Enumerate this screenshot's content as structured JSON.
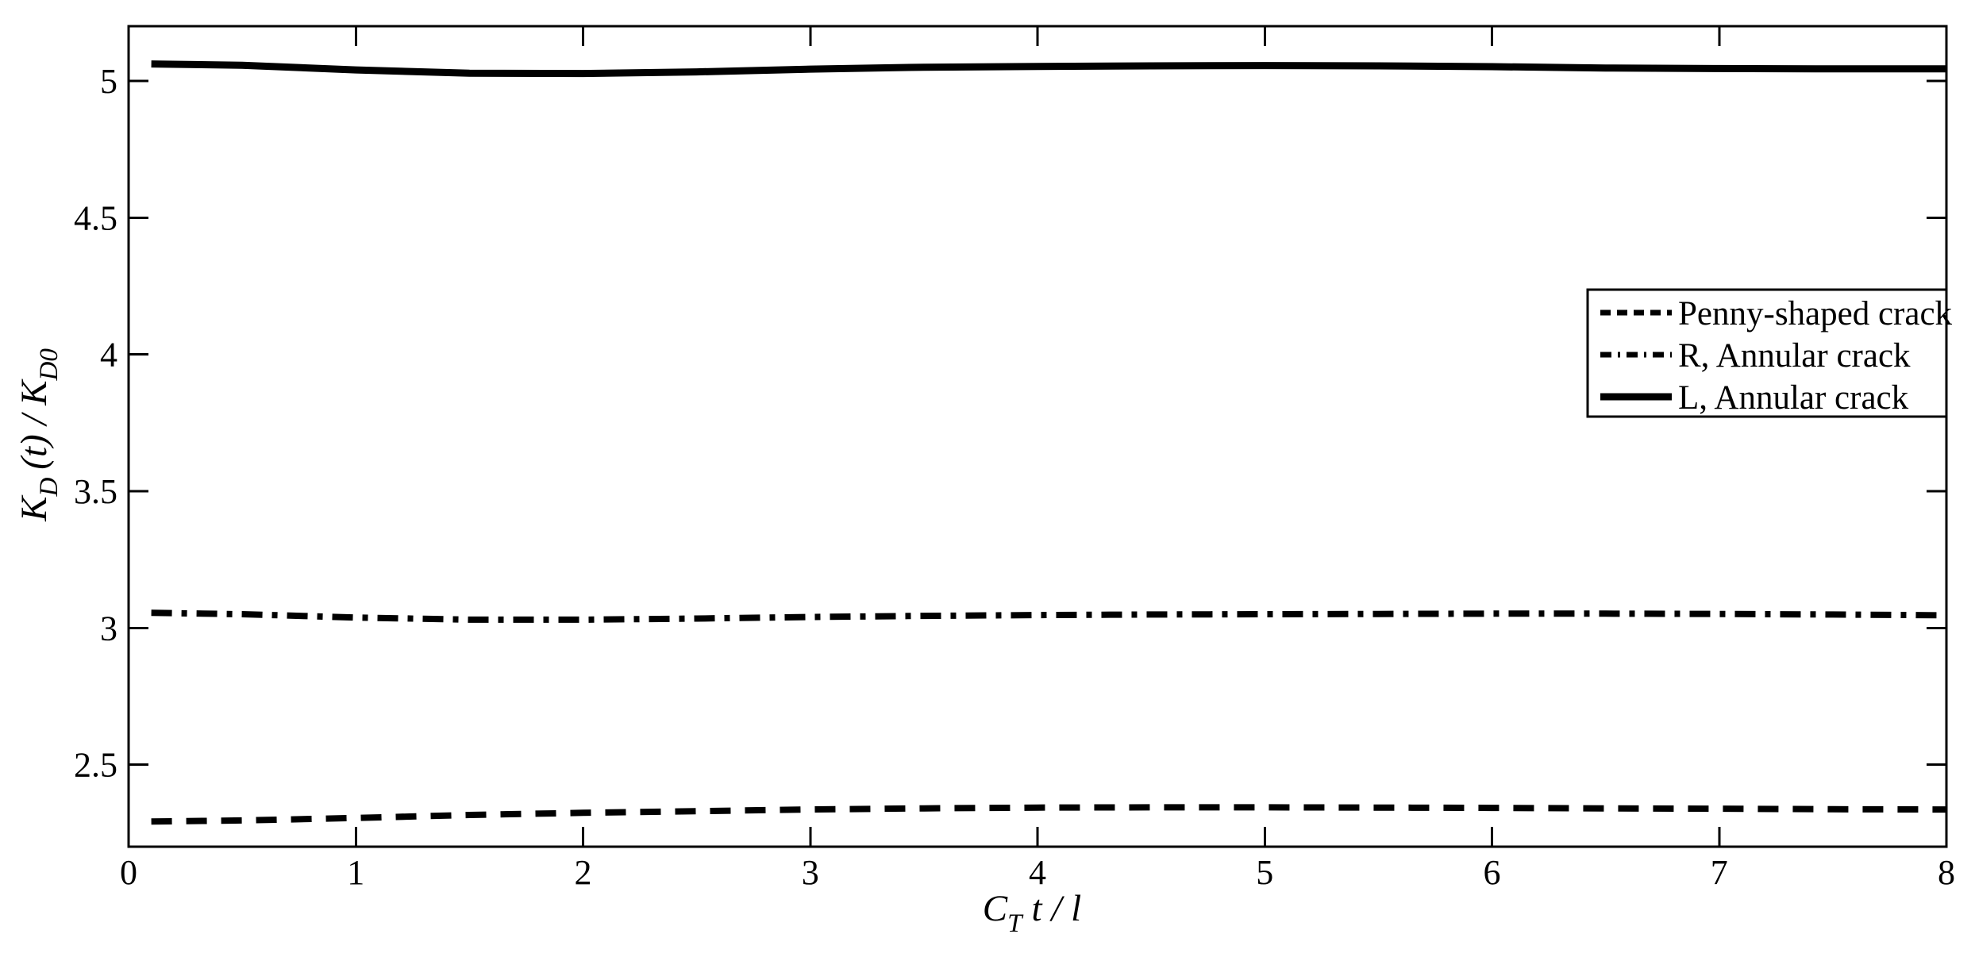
{
  "figure": {
    "background": "#ffffff",
    "axis_color": "#000000"
  },
  "chart_data": {
    "type": "line",
    "title": "",
    "xlabel": {
      "base": "C",
      "sub": "T",
      "rest": "t / l"
    },
    "ylabel": {
      "k1": "K",
      "sub1": "D",
      "mid": "(t) / ",
      "k2": "K",
      "sub2": "D0"
    },
    "xlim": [
      0,
      8
    ],
    "ylim": [
      2.2,
      5.2
    ],
    "x_ticks": [
      0,
      1,
      2,
      3,
      4,
      5,
      6,
      7,
      8
    ],
    "y_ticks": [
      2.5,
      3,
      3.5,
      4,
      4.5,
      5
    ],
    "grid": false,
    "legend": {
      "position": "upper right",
      "border": true
    },
    "x": [
      0.1,
      0.5,
      1,
      1.5,
      2,
      2.5,
      3,
      3.5,
      4,
      4.5,
      5,
      5.5,
      6,
      6.5,
      7,
      7.5,
      8
    ],
    "series": [
      {
        "name": "Penny-shaped crack",
        "line_style": "dashed",
        "color": "#000000",
        "values": [
          2.292,
          2.296,
          2.305,
          2.316,
          2.324,
          2.33,
          2.336,
          2.34,
          2.343,
          2.344,
          2.344,
          2.343,
          2.342,
          2.34,
          2.339,
          2.337,
          2.336
        ]
      },
      {
        "name": "R, Annular crack",
        "line_style": "dashdot",
        "color": "#000000",
        "values": [
          3.055,
          3.05,
          3.038,
          3.03,
          3.03,
          3.034,
          3.04,
          3.044,
          3.047,
          3.049,
          3.05,
          3.051,
          3.052,
          3.052,
          3.051,
          3.049,
          3.046
        ]
      },
      {
        "name": "L, Annular crack",
        "line_style": "solid",
        "color": "#000000",
        "values": [
          5.062,
          5.057,
          5.04,
          5.028,
          5.027,
          5.033,
          5.043,
          5.05,
          5.053,
          5.055,
          5.056,
          5.055,
          5.052,
          5.047,
          5.045,
          5.044,
          5.044
        ]
      }
    ]
  }
}
